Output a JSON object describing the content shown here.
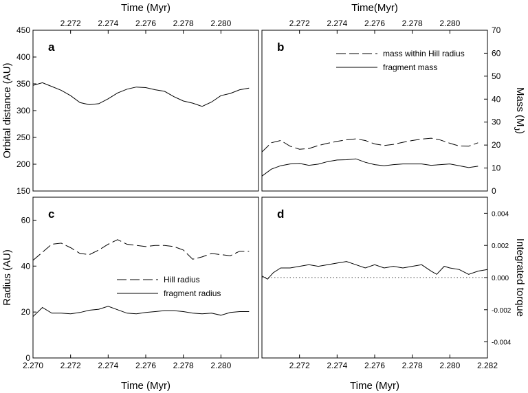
{
  "chart_data": [
    {
      "type": "line",
      "panel": "a",
      "label": "a",
      "xtop_label": "Time (Myr)",
      "xtop_ticks": [
        "2.272",
        "2.274",
        "2.276",
        "2.278",
        "2.280"
      ],
      "xlim": [
        2.27,
        2.282
      ],
      "ylabel": "Orbital distance (AU)",
      "ylim": [
        150,
        450
      ],
      "yticks": [
        "150",
        "200",
        "250",
        "300",
        "350",
        "400",
        "450"
      ],
      "series": [
        {
          "style": "solid",
          "x": [
            2.27,
            2.2705,
            2.271,
            2.2715,
            2.272,
            2.2725,
            2.273,
            2.2735,
            2.274,
            2.2745,
            2.275,
            2.2755,
            2.276,
            2.2765,
            2.277,
            2.2775,
            2.278,
            2.2785,
            2.279,
            2.2795,
            2.28,
            2.2805,
            2.281,
            2.2815
          ],
          "values": [
            347,
            352,
            345,
            338,
            328,
            315,
            311,
            313,
            322,
            333,
            340,
            344,
            343,
            339,
            336,
            326,
            318,
            314,
            308,
            316,
            328,
            332,
            339,
            342
          ]
        }
      ]
    },
    {
      "type": "line",
      "panel": "b",
      "label": "b",
      "xtop_label": "Time(Myr)",
      "xtop_ticks": [
        "2.272",
        "2.274",
        "2.276",
        "2.278",
        "2.280"
      ],
      "xlim": [
        2.27,
        2.282
      ],
      "ylabel": "Mass (M",
      "ylabel_sub": "J",
      "ylabel_end": ")",
      "ylim": [
        0,
        70
      ],
      "yticks": [
        "0",
        "10",
        "20",
        "30",
        "40",
        "50",
        "60",
        "70"
      ],
      "legend": [
        "mass within Hill radius",
        "fragment mass"
      ],
      "series": [
        {
          "name": "mass within Hill radius",
          "style": "dashed",
          "x": [
            2.27,
            2.2705,
            2.271,
            2.2715,
            2.272,
            2.2725,
            2.273,
            2.2735,
            2.274,
            2.2745,
            2.275,
            2.2755,
            2.276,
            2.2765,
            2.277,
            2.2775,
            2.278,
            2.2785,
            2.279,
            2.2795,
            2.28,
            2.2805,
            2.281,
            2.2815
          ],
          "values": [
            17,
            21,
            22,
            19.5,
            18.2,
            18.5,
            19.8,
            20.8,
            21.6,
            22.3,
            22.7,
            22,
            20.5,
            19.8,
            20.3,
            21.2,
            22,
            22.6,
            23,
            22.2,
            20.8,
            19.6,
            19.5,
            21
          ]
        },
        {
          "name": "fragment mass",
          "style": "solid",
          "x": [
            2.27,
            2.2705,
            2.271,
            2.2715,
            2.272,
            2.2725,
            2.273,
            2.2735,
            2.274,
            2.2745,
            2.275,
            2.2755,
            2.276,
            2.2765,
            2.277,
            2.2775,
            2.278,
            2.2785,
            2.279,
            2.2795,
            2.28,
            2.2805,
            2.281,
            2.2815
          ],
          "values": [
            6.5,
            9.5,
            11,
            11.8,
            12,
            11.2,
            11.7,
            12.8,
            13.5,
            13.6,
            14,
            12.5,
            11.5,
            11,
            11.5,
            11.8,
            11.8,
            11.8,
            11.2,
            11.5,
            11.8,
            11,
            10.2,
            10.8
          ]
        }
      ]
    },
    {
      "type": "line",
      "panel": "c",
      "label": "c",
      "xlabel": "Time (Myr)",
      "xticks": [
        "2.270",
        "2.272",
        "2.274",
        "2.276",
        "2.278",
        "2.280"
      ],
      "xlim": [
        2.27,
        2.282
      ],
      "ylabel": "Radius (AU)",
      "ylim": [
        0,
        70
      ],
      "yticks": [
        "0",
        "20",
        "40",
        "60"
      ],
      "legend": [
        "Hill radius",
        "fragment radius"
      ],
      "series": [
        {
          "name": "Hill radius",
          "style": "dashed",
          "x": [
            2.27,
            2.2705,
            2.271,
            2.2715,
            2.272,
            2.2725,
            2.273,
            2.2735,
            2.274,
            2.2745,
            2.275,
            2.2755,
            2.276,
            2.2765,
            2.277,
            2.2775,
            2.278,
            2.2785,
            2.279,
            2.2795,
            2.28,
            2.2805,
            2.281,
            2.2815
          ],
          "values": [
            42.5,
            46,
            49.5,
            50,
            48,
            45.5,
            45,
            47,
            49.5,
            51.5,
            49.5,
            49,
            48.5,
            49,
            49,
            48.5,
            47,
            43,
            44,
            45.5,
            45,
            44.5,
            46.5,
            46.5
          ]
        },
        {
          "name": "fragment radius",
          "style": "solid",
          "x": [
            2.27,
            2.2705,
            2.271,
            2.2715,
            2.272,
            2.2725,
            2.273,
            2.2735,
            2.274,
            2.2745,
            2.275,
            2.2755,
            2.276,
            2.2765,
            2.277,
            2.2775,
            2.278,
            2.2785,
            2.279,
            2.2795,
            2.28,
            2.2805,
            2.281,
            2.2815
          ],
          "values": [
            18,
            22,
            19.5,
            19.5,
            19.2,
            19.8,
            20.8,
            21.2,
            22.5,
            21,
            19.5,
            19.2,
            19.8,
            20.2,
            20.6,
            20.6,
            20.2,
            19.5,
            19.2,
            19.5,
            18.6,
            19.8,
            20.2,
            20.2
          ]
        }
      ]
    },
    {
      "type": "line",
      "panel": "d",
      "label": "d",
      "xlabel": "Time (Myr)",
      "xticks": [
        "2.272",
        "2.274",
        "2.276",
        "2.278",
        "2.280",
        "2.282"
      ],
      "xlim": [
        2.27,
        2.282
      ],
      "ylabel": "Integrated torque",
      "ylim": [
        -0.005,
        0.005
      ],
      "yticks": [
        "-0.004",
        "-0.002",
        "0.000",
        "0.002",
        "0.004"
      ],
      "series": [
        {
          "style": "solid",
          "x": [
            2.27,
            2.2703,
            2.2706,
            2.271,
            2.2715,
            2.272,
            2.2725,
            2.273,
            2.2735,
            2.274,
            2.2745,
            2.275,
            2.2755,
            2.276,
            2.2765,
            2.277,
            2.2775,
            2.278,
            2.2785,
            2.279,
            2.2793,
            2.2797,
            2.28,
            2.2805,
            2.281,
            2.2815,
            2.282
          ],
          "values": [
            0.0001,
            -0.0001,
            0.0003,
            0.0006,
            0.0006,
            0.0007,
            0.0008,
            0.0007,
            0.0008,
            0.0009,
            0.001,
            0.0008,
            0.0006,
            0.0008,
            0.0006,
            0.0007,
            0.0006,
            0.0007,
            0.0008,
            0.0004,
            0.0002,
            0.0007,
            0.0006,
            0.0005,
            0.0002,
            0.0004,
            0.0005
          ]
        },
        {
          "style": "dotted",
          "x": [
            2.27,
            2.282
          ],
          "values": [
            0.0,
            0.0
          ]
        }
      ]
    }
  ]
}
